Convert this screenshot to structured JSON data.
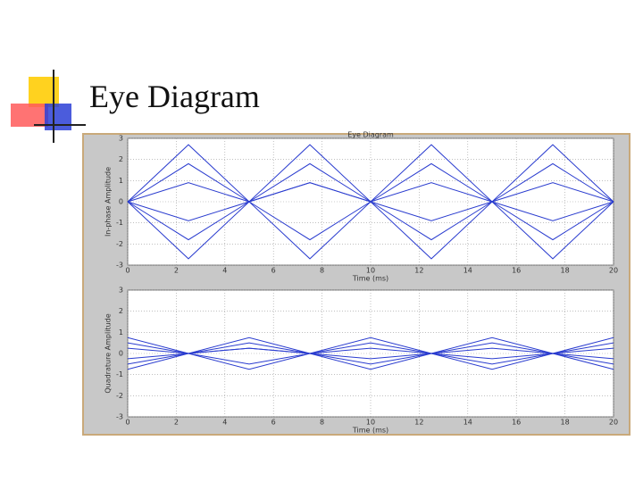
{
  "slide": {
    "title": "Eye Diagram"
  },
  "chart_data": [
    {
      "type": "line",
      "title": "Eye Diagram",
      "xlabel": "Time (ms)",
      "ylabel": "In-phase Amplitude",
      "x": [
        0,
        2.5,
        5,
        7.5,
        10,
        12.5,
        15,
        17.5,
        20
      ],
      "series": [
        {
          "color": "#2a3ccf",
          "values": [
            0,
            2.7,
            0,
            2.7,
            0,
            2.7,
            0,
            2.7,
            0
          ]
        },
        {
          "color": "#2a3ccf",
          "values": [
            0,
            1.8,
            0,
            -1.8,
            0,
            1.8,
            0,
            -1.8,
            0
          ]
        },
        {
          "color": "#2a3ccf",
          "values": [
            0,
            0.9,
            0,
            0.9,
            0,
            -0.9,
            0,
            0.9,
            0
          ]
        },
        {
          "color": "#2a3ccf",
          "values": [
            0,
            -0.9,
            0,
            0.9,
            0,
            0.9,
            0,
            -0.9,
            0
          ]
        },
        {
          "color": "#2a3ccf",
          "values": [
            0,
            -1.8,
            0,
            1.8,
            0,
            -1.8,
            0,
            1.8,
            0
          ]
        },
        {
          "color": "#2a3ccf",
          "values": [
            0,
            -2.7,
            0,
            -2.7,
            0,
            -2.7,
            0,
            -2.7,
            0
          ]
        }
      ],
      "xlim": [
        0,
        20
      ],
      "ylim": [
        -3,
        3
      ],
      "xticks": [
        0,
        2,
        4,
        6,
        8,
        10,
        12,
        14,
        16,
        18,
        20
      ],
      "yticks": [
        -3,
        -2,
        -1,
        0,
        1,
        2,
        3
      ],
      "grid": true
    },
    {
      "type": "line",
      "xlabel": "Time (ms)",
      "ylabel": "Quadrature Amplitude",
      "x": [
        0,
        2.5,
        5,
        7.5,
        10,
        12.5,
        15,
        17.5,
        20
      ],
      "series": [
        {
          "color": "#2a3ccf",
          "values": [
            0.75,
            0,
            0.75,
            0,
            0.75,
            0,
            0.75,
            0,
            0.75
          ]
        },
        {
          "color": "#2a3ccf",
          "values": [
            0.5,
            0,
            -0.5,
            0,
            0.5,
            0,
            -0.5,
            0,
            0.5
          ]
        },
        {
          "color": "#2a3ccf",
          "values": [
            0.25,
            0,
            0.25,
            0,
            -0.25,
            0,
            0.25,
            0,
            0.25
          ]
        },
        {
          "color": "#2a3ccf",
          "values": [
            -0.25,
            0,
            0.25,
            0,
            0.25,
            0,
            -0.25,
            0,
            -0.25
          ]
        },
        {
          "color": "#2a3ccf",
          "values": [
            -0.5,
            0,
            0.5,
            0,
            -0.5,
            0,
            0.5,
            0,
            -0.5
          ]
        },
        {
          "color": "#2a3ccf",
          "values": [
            -0.75,
            0,
            -0.75,
            0,
            -0.75,
            0,
            -0.75,
            0,
            -0.75
          ]
        }
      ],
      "xlim": [
        0,
        20
      ],
      "ylim": [
        -3,
        3
      ],
      "xticks": [
        0,
        2,
        4,
        6,
        8,
        10,
        12,
        14,
        16,
        18,
        20
      ],
      "yticks": [
        -3,
        -2,
        -1,
        0,
        1,
        2,
        3
      ],
      "grid": true
    }
  ]
}
